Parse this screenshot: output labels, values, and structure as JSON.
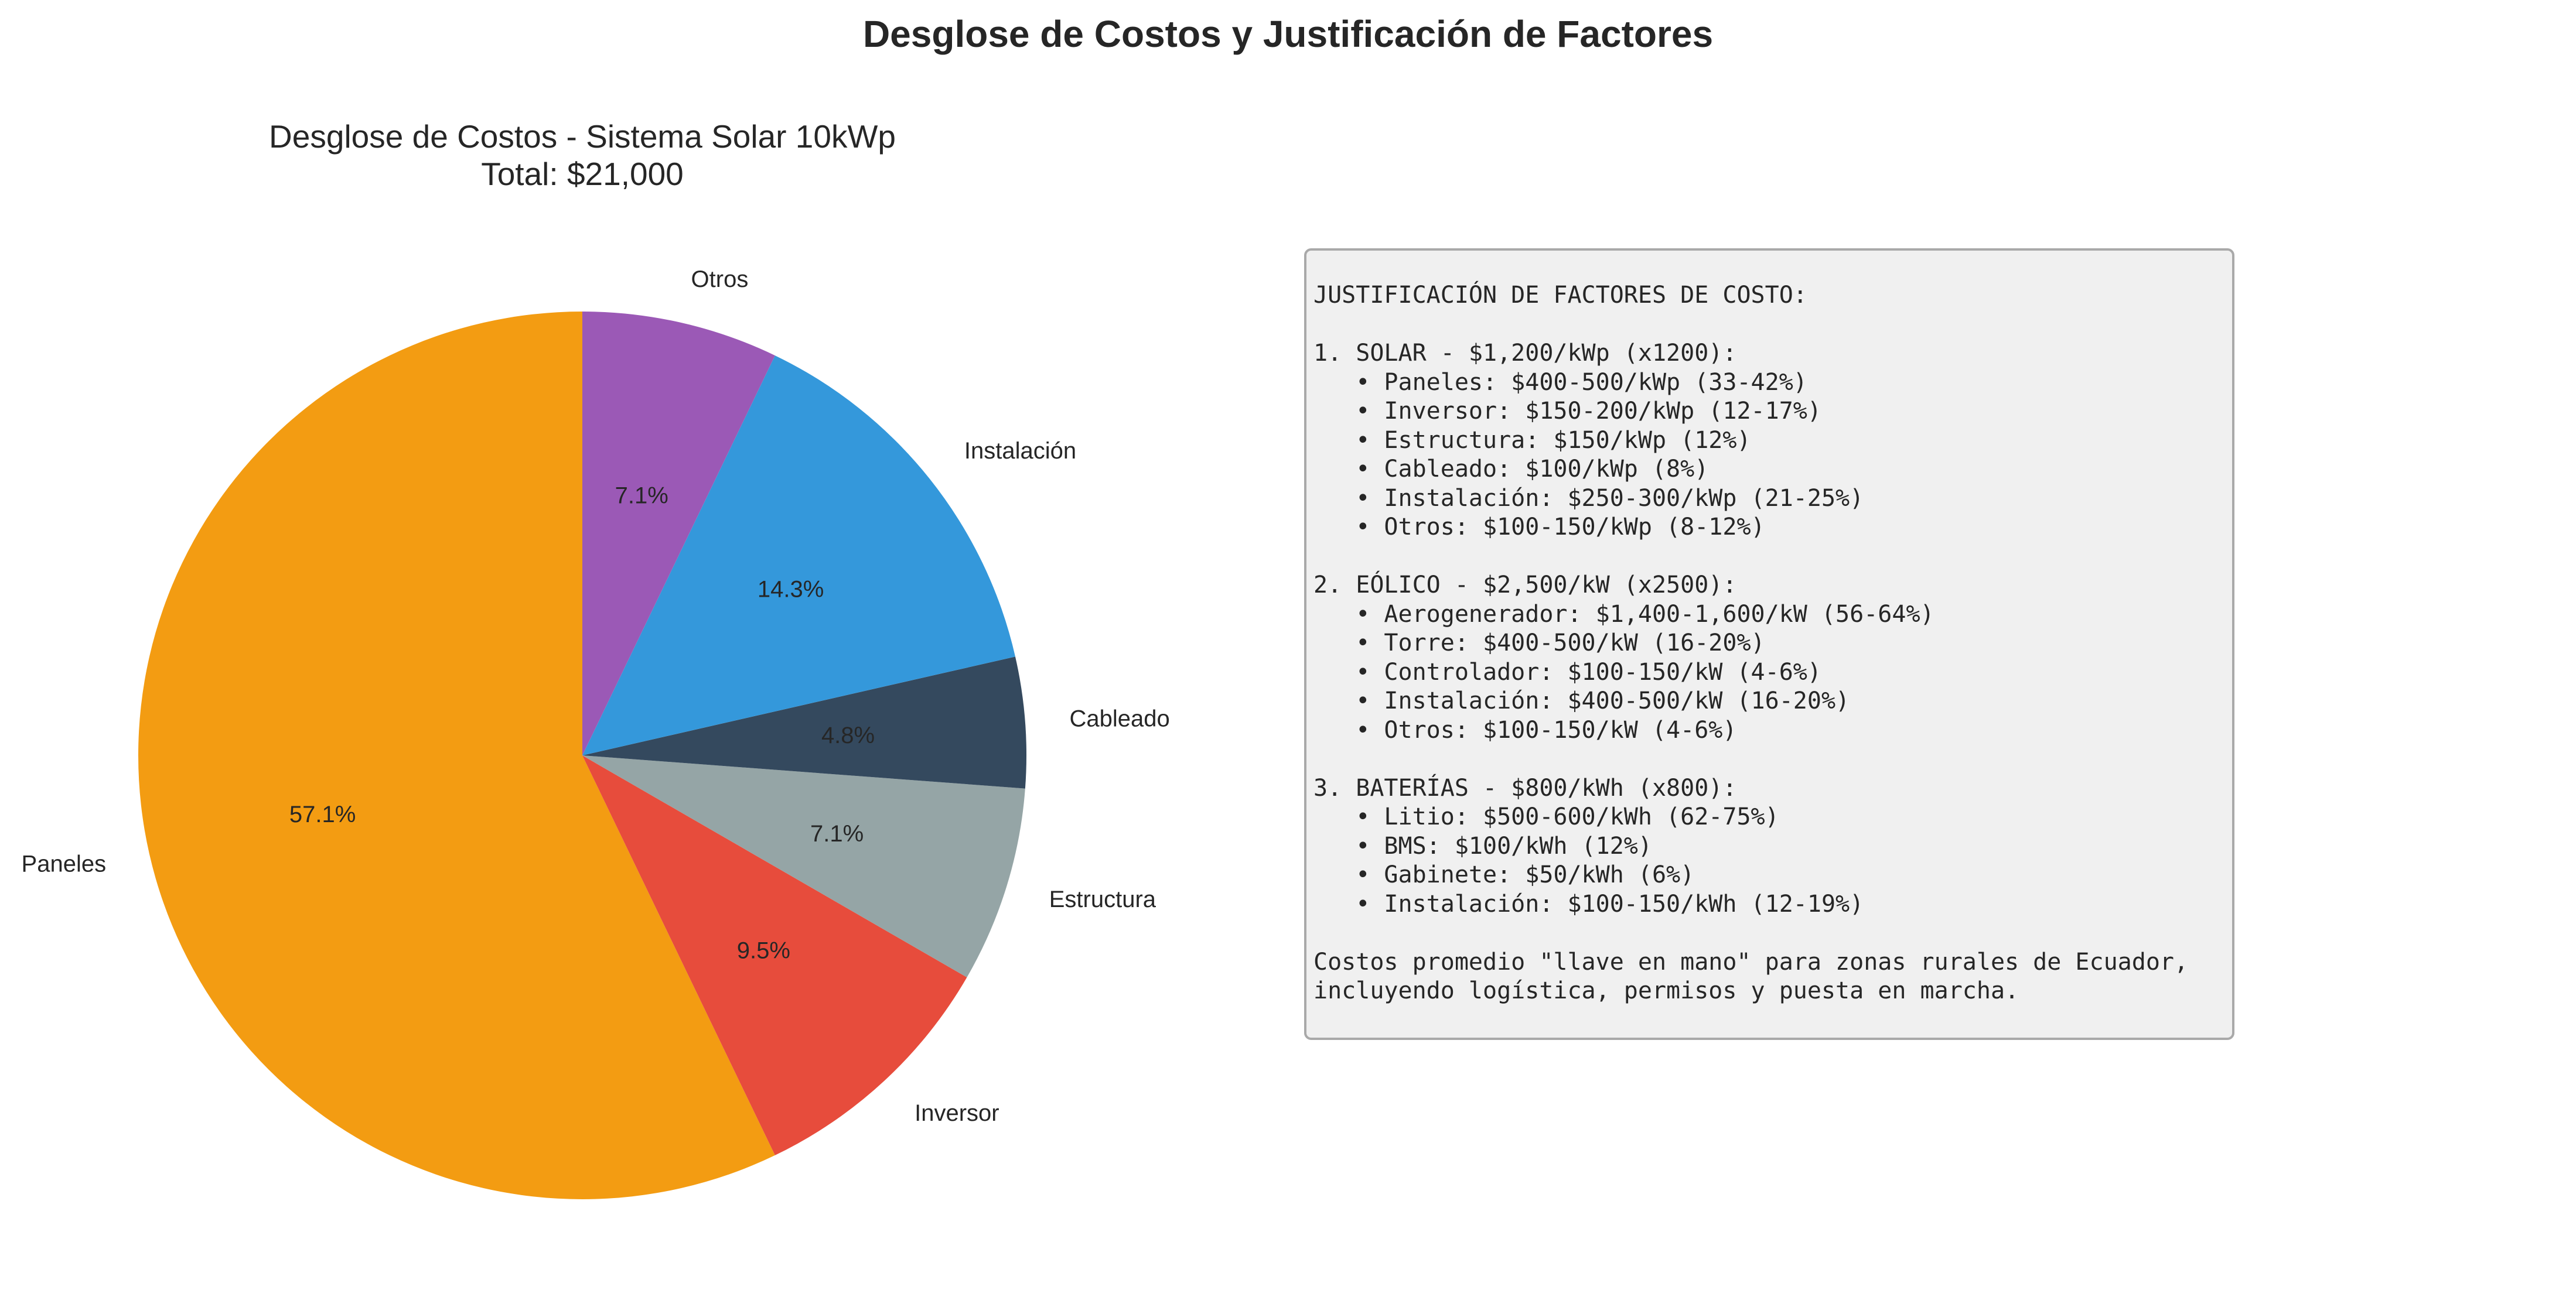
{
  "suptitle": "Desglose de Costos y Justificación de Factores",
  "chart_data": {
    "type": "pie",
    "title": "Desglose de Costos - Sistema Solar 10kWp\nTotal: $21,000",
    "total": 21000,
    "start_angle_deg": 90,
    "direction": "counterclockwise",
    "slices": [
      {
        "label": "Paneles",
        "value": 12000,
        "pct_label": "57.1%",
        "color": "#f39c12"
      },
      {
        "label": "Inversor",
        "value": 2000,
        "pct_label": "9.5%",
        "color": "#e74c3c"
      },
      {
        "label": "Estructura",
        "value": 1500,
        "pct_label": "7.1%",
        "color": "#95a5a6"
      },
      {
        "label": "Cableado",
        "value": 1000,
        "pct_label": "4.8%",
        "color": "#34495e"
      },
      {
        "label": "Instalación",
        "value": 3000,
        "pct_label": "14.3%",
        "color": "#3498db"
      },
      {
        "label": "Otros",
        "value": 1500,
        "pct_label": "7.1%",
        "color": "#9b59b6"
      }
    ]
  },
  "justification": {
    "text": "JUSTIFICACIÓN DE FACTORES DE COSTO:\n\n1. SOLAR - $1,200/kWp (x1200):\n   • Paneles: $400-500/kWp (33-42%)\n   • Inversor: $150-200/kWp (12-17%)\n   • Estructura: $150/kWp (12%)\n   • Cableado: $100/kWp (8%)\n   • Instalación: $250-300/kWp (21-25%)\n   • Otros: $100-150/kWp (8-12%)\n\n2. EÓLICO - $2,500/kW (x2500):\n   • Aerogenerador: $1,400-1,600/kW (56-64%)\n   • Torre: $400-500/kW (16-20%)\n   • Controlador: $100-150/kW (4-6%)\n   • Instalación: $400-500/kW (16-20%)\n   • Otros: $100-150/kW (4-6%)\n\n3. BATERÍAS - $800/kWh (x800):\n   • Litio: $500-600/kWh (62-75%)\n   • BMS: $100/kWh (12%)\n   • Gabinete: $50/kWh (6%)\n   • Instalación: $100-150/kWh (12-19%)\n\nCostos promedio \"llave en mano\" para zonas rurales de Ecuador,\nincluyendo logística, permisos y puesta en marcha."
  }
}
